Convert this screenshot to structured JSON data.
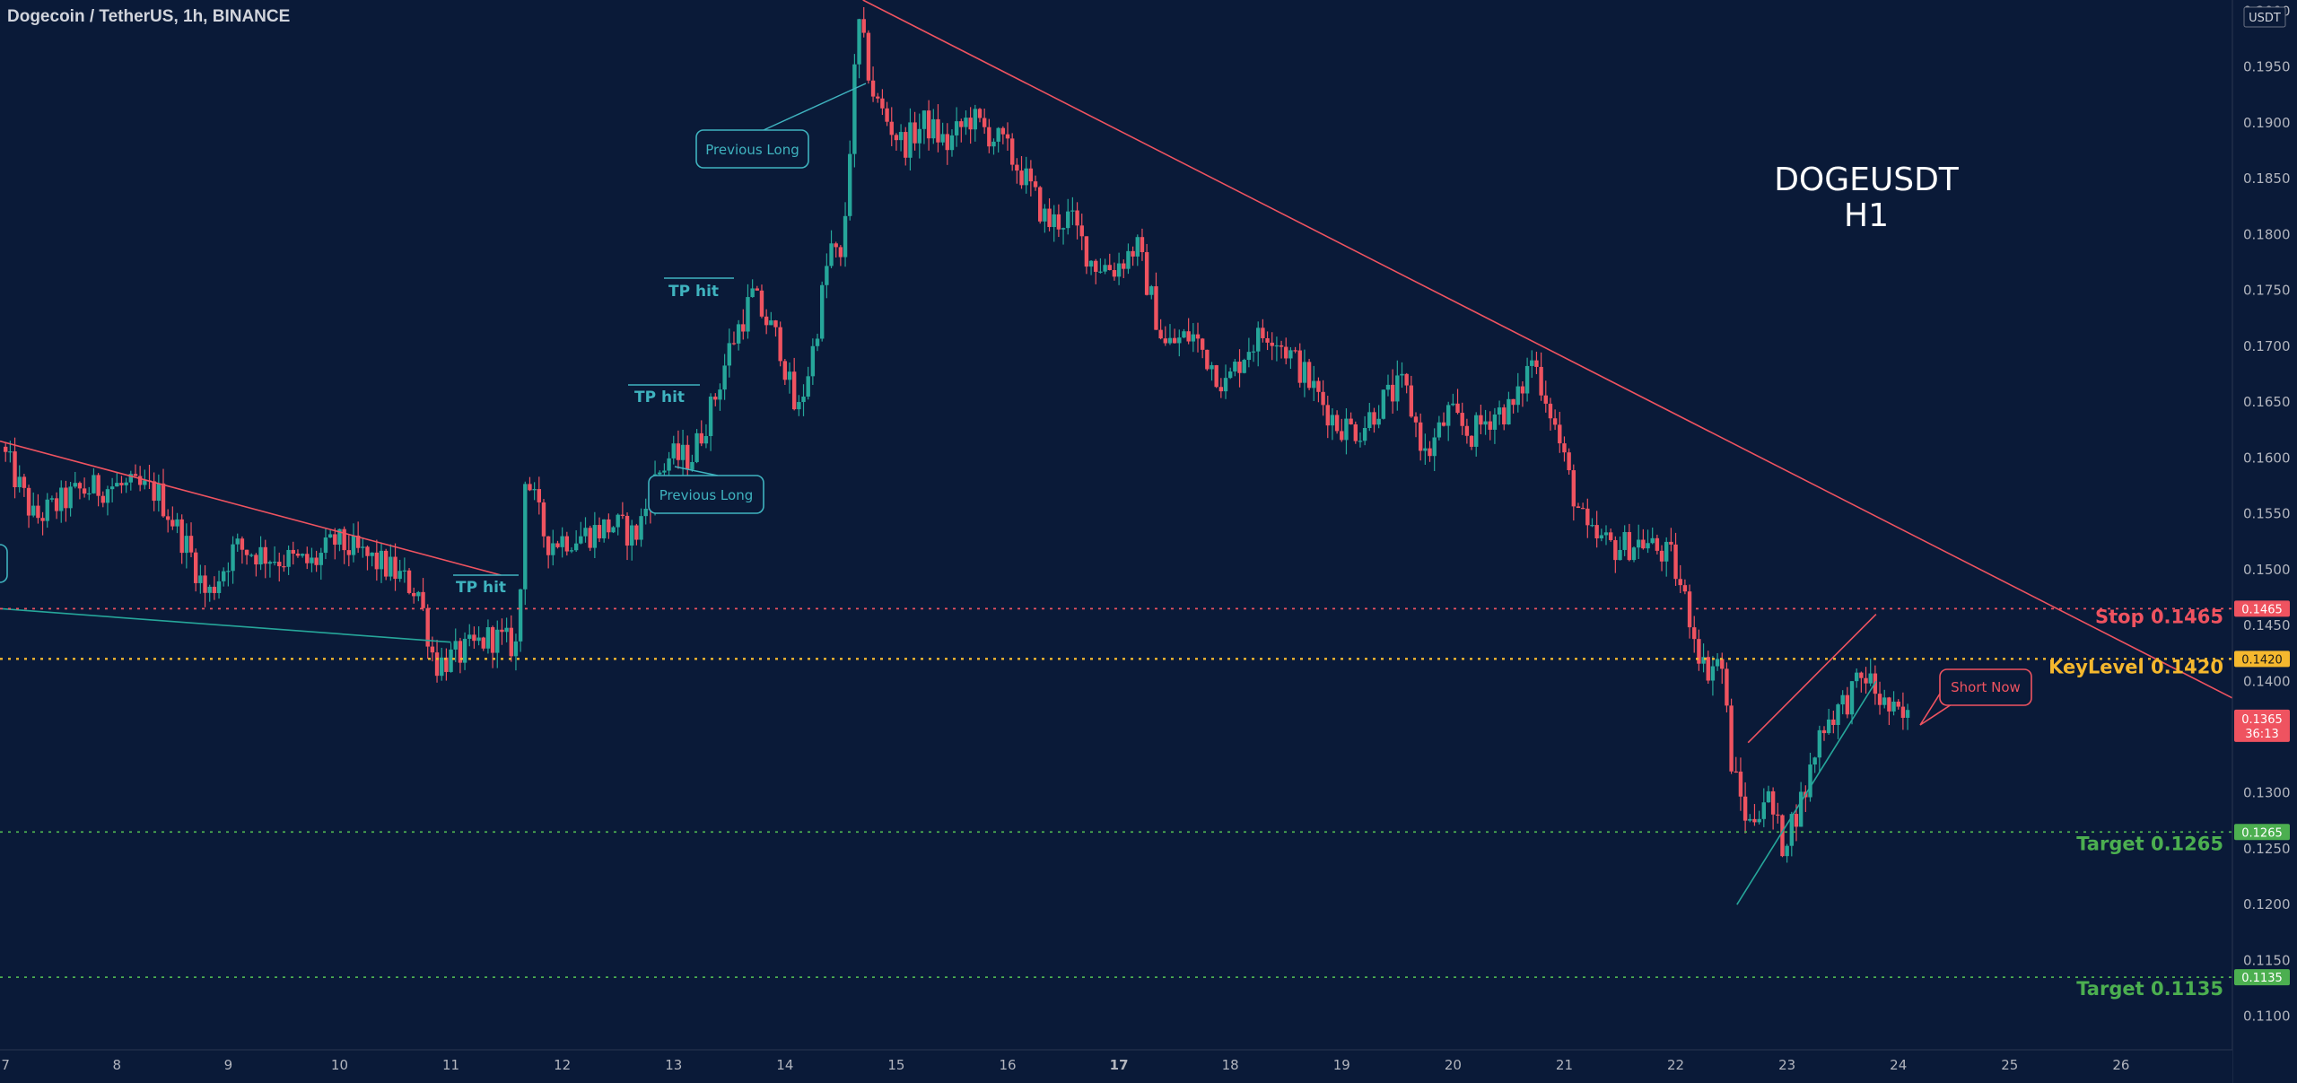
{
  "header": {
    "title": "Dogecoin / TetherUS, 1h, BINANCE"
  },
  "axis": {
    "currency_badge": "USDT",
    "price_ticks": [
      "0.2000",
      "0.1950",
      "0.1900",
      "0.1850",
      "0.1800",
      "0.1750",
      "0.1700",
      "0.1650",
      "0.1600",
      "0.1550",
      "0.1500",
      "0.1450",
      "0.1400",
      "0.1350",
      "0.1300",
      "0.1250",
      "0.1200",
      "0.1150",
      "0.1100"
    ],
    "date_ticks": [
      "7",
      "8",
      "9",
      "10",
      "11",
      "12",
      "13",
      "14",
      "15",
      "16",
      "17",
      "18",
      "19",
      "20",
      "21",
      "22",
      "23",
      "24",
      "25",
      "26"
    ],
    "bold_date_ticks": [
      "17"
    ]
  },
  "overlay_title": {
    "line1": "DOGEUSDT",
    "line2": "H1"
  },
  "levels": {
    "stop": {
      "value": 0.1465,
      "label": "Stop 0.1465",
      "badge": "0.1465",
      "color": "#ef5360"
    },
    "keylevel": {
      "value": 0.142,
      "label": "KeyLevel 0.1420",
      "badge": "0.1420",
      "color": "#f5b82e"
    },
    "target1": {
      "value": 0.1265,
      "label": "Target 0.1265",
      "badge": "0.1265",
      "color": "#4caf50"
    },
    "target2": {
      "value": 0.1135,
      "label": "Target 0.1135",
      "badge": "0.1135",
      "color": "#4caf50"
    }
  },
  "last_price": {
    "value": "0.1365",
    "countdown": "36:13",
    "color": "#ef5360"
  },
  "annotations": {
    "previous_long": "Previous Long",
    "tp_hit": "TP hit",
    "short_now": "Short Now"
  },
  "colors": {
    "background": "#0a1a38",
    "up": "#26a69a",
    "down": "#ef5360",
    "text": "#b2b5be"
  },
  "chart_data": {
    "type": "candlestick",
    "symbol": "DOGEUSDT",
    "timeframe": "1h",
    "ylim": [
      0.107,
      0.201
    ],
    "x_range_days": [
      6.95,
      27.0
    ],
    "price_path": [
      [
        7.0,
        0.161
      ],
      [
        7.3,
        0.1545
      ],
      [
        7.7,
        0.157
      ],
      [
        8.0,
        0.1575
      ],
      [
        8.4,
        0.157
      ],
      [
        8.7,
        0.1515
      ],
      [
        8.85,
        0.1475
      ],
      [
        9.1,
        0.152
      ],
      [
        9.5,
        0.151
      ],
      [
        9.8,
        0.1505
      ],
      [
        10.0,
        0.1525
      ],
      [
        10.3,
        0.151
      ],
      [
        10.5,
        0.15
      ],
      [
        10.75,
        0.148
      ],
      [
        10.9,
        0.1415
      ],
      [
        11.15,
        0.1425
      ],
      [
        11.4,
        0.144
      ],
      [
        11.65,
        0.143
      ],
      [
        11.7,
        0.159
      ],
      [
        11.9,
        0.1525
      ],
      [
        12.2,
        0.153
      ],
      [
        12.5,
        0.154
      ],
      [
        12.7,
        0.153
      ],
      [
        12.9,
        0.1585
      ],
      [
        13.0,
        0.16
      ],
      [
        13.2,
        0.16
      ],
      [
        13.4,
        0.165
      ],
      [
        13.55,
        0.17
      ],
      [
        13.75,
        0.1745
      ],
      [
        14.0,
        0.17
      ],
      [
        14.15,
        0.1635
      ],
      [
        14.3,
        0.17
      ],
      [
        14.45,
        0.179
      ],
      [
        14.55,
        0.177
      ],
      [
        14.7,
        0.199
      ],
      [
        14.85,
        0.192
      ],
      [
        15.1,
        0.188
      ],
      [
        15.3,
        0.19
      ],
      [
        15.5,
        0.188
      ],
      [
        15.7,
        0.1905
      ],
      [
        16.0,
        0.188
      ],
      [
        16.2,
        0.185
      ],
      [
        16.4,
        0.181
      ],
      [
        16.6,
        0.1815
      ],
      [
        16.8,
        0.1775
      ],
      [
        17.0,
        0.177
      ],
      [
        17.2,
        0.179
      ],
      [
        17.45,
        0.17
      ],
      [
        17.7,
        0.171
      ],
      [
        18.0,
        0.1665
      ],
      [
        18.2,
        0.17
      ],
      [
        18.4,
        0.1715
      ],
      [
        18.6,
        0.169
      ],
      [
        18.8,
        0.166
      ],
      [
        19.0,
        0.163
      ],
      [
        19.2,
        0.1625
      ],
      [
        19.4,
        0.165
      ],
      [
        19.6,
        0.1665
      ],
      [
        19.8,
        0.16
      ],
      [
        20.0,
        0.164
      ],
      [
        20.2,
        0.162
      ],
      [
        20.4,
        0.164
      ],
      [
        20.6,
        0.1645
      ],
      [
        20.75,
        0.169
      ],
      [
        20.9,
        0.165
      ],
      [
        21.1,
        0.1575
      ],
      [
        21.25,
        0.153
      ],
      [
        21.5,
        0.152
      ],
      [
        21.75,
        0.1525
      ],
      [
        22.0,
        0.151
      ],
      [
        22.15,
        0.1465
      ],
      [
        22.3,
        0.141
      ],
      [
        22.45,
        0.142
      ],
      [
        22.55,
        0.132
      ],
      [
        22.7,
        0.127
      ],
      [
        22.85,
        0.13
      ],
      [
        23.0,
        0.1255
      ],
      [
        23.2,
        0.13
      ],
      [
        23.35,
        0.136
      ],
      [
        23.55,
        0.138
      ],
      [
        23.75,
        0.1405
      ],
      [
        23.9,
        0.138
      ],
      [
        24.0,
        0.137
      ],
      [
        24.1,
        0.1365
      ]
    ],
    "trendlines": [
      {
        "name": "descending resistance",
        "points": [
          [
            14.7,
            0.201
          ],
          [
            27.0,
            0.1385
          ]
        ],
        "color": "#ef5360"
      },
      {
        "name": "old resistance",
        "points": [
          [
            6.95,
            0.1615
          ],
          [
            11.45,
            0.1495
          ]
        ],
        "color": "#ef5360"
      },
      {
        "name": "old support",
        "points": [
          [
            6.95,
            0.1465
          ],
          [
            11.0,
            0.1435
          ]
        ],
        "color": "#26a69a"
      },
      {
        "name": "wedge support",
        "points": [
          [
            22.55,
            0.12
          ],
          [
            23.8,
            0.14
          ]
        ],
        "color": "#26a69a"
      },
      {
        "name": "wedge resistance",
        "points": [
          [
            22.65,
            0.1345
          ],
          [
            23.8,
            0.146
          ]
        ],
        "color": "#ef5360"
      }
    ]
  }
}
